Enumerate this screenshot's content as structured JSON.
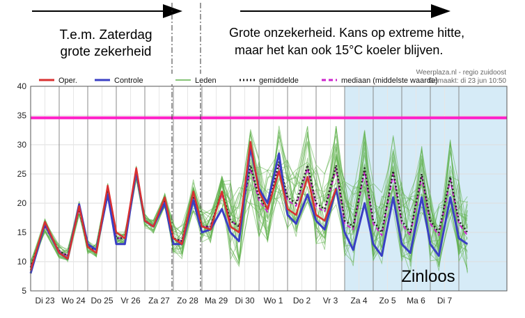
{
  "annotations": {
    "left_text_line1": "T.e.m. Zaterdag",
    "left_text_line2": "grote zekerheid",
    "right_text_line1": "Grote onzekerheid. Kans op extreme hitte,",
    "right_text_line2": "maar het kan ook 15°C koeler blijven.",
    "zinloos": "Zinloos"
  },
  "credit": {
    "line1": "Weerplaza.nl - regio zuidoost",
    "line2": "Gemaakt: di 23 jun 10:50"
  },
  "colors": {
    "oper": "#d93030",
    "controle": "#3a3fc4",
    "leden": "#5fb04a",
    "gemiddelde": "#222222",
    "mediaan": "#cc22cc",
    "threshold": "#ff1fc8",
    "zinloos_bg": "#d6ebf7"
  },
  "chart_data": {
    "type": "line",
    "ylim": [
      5,
      40
    ],
    "yticks": [
      5,
      10,
      15,
      20,
      25,
      30,
      35,
      40
    ],
    "xlim": [
      0,
      15.6
    ],
    "day_labels": [
      "Di 23",
      "Wo 24",
      "Do 25",
      "Vr 26",
      "Za 27",
      "Zo 28",
      "Ma 29",
      "Di 30",
      "Wo 1",
      "Do 2",
      "Vr 3",
      "Za 4",
      "Zo 5",
      "Ma 6",
      "Di 7"
    ],
    "threshold_line": 34.6,
    "zinloos_from_day": 11,
    "dashdot_lines_at_day": [
      5,
      6
    ],
    "legend": [
      {
        "key": "oper",
        "label": "Oper."
      },
      {
        "key": "controle",
        "label": "Controle"
      },
      {
        "key": "leden",
        "label": "Leden"
      },
      {
        "key": "gemiddelde",
        "label": "gemiddelde"
      },
      {
        "key": "mediaan",
        "label": "mediaan (middelste waarde)"
      }
    ],
    "series": [
      {
        "key": "oper",
        "name": "Oper.",
        "x": [
          0,
          0.5,
          1,
          1.3,
          1.7,
          2,
          2.3,
          2.7,
          3,
          3.3,
          3.7,
          4,
          4.3,
          4.7,
          5,
          5.3,
          5.7,
          6,
          6.3,
          6.7,
          7,
          7.3,
          7.7,
          8,
          8.3,
          8.7,
          9,
          9.3,
          9.7,
          10,
          10.3,
          10.7
        ],
        "y": [
          8.5,
          16.8,
          11.5,
          10.5,
          19.5,
          12.5,
          11.5,
          23,
          15,
          14,
          26,
          17,
          16,
          21,
          14,
          13,
          22,
          16,
          15.5,
          22,
          16,
          15,
          30.5,
          22,
          19,
          25.5,
          19,
          18,
          24.5,
          18,
          17,
          22.5
        ]
      },
      {
        "key": "controle",
        "name": "Controle",
        "x": [
          0,
          0.5,
          1,
          1.3,
          1.7,
          2,
          2.3,
          2.7,
          3,
          3.3,
          3.7,
          4,
          4.3,
          4.7,
          5,
          5.3,
          5.7,
          6,
          6.3,
          6.7,
          7,
          7.3,
          7.7,
          8,
          8.3,
          8.7,
          9,
          9.3,
          9.7,
          10,
          10.3,
          10.7,
          11,
          11.3,
          11.7,
          12,
          12.3,
          12.7,
          13,
          13.3,
          13.7,
          14,
          14.3,
          14.7,
          15,
          15.3
        ],
        "y": [
          8,
          16.5,
          11.5,
          10.5,
          19.8,
          13,
          12,
          21.5,
          13,
          13,
          25.5,
          17,
          16,
          20,
          13,
          13,
          20.5,
          15,
          15.5,
          19,
          15,
          13.5,
          29.5,
          22.5,
          20,
          28.5,
          18,
          16.5,
          21.5,
          17,
          15.5,
          22.5,
          15,
          12,
          20,
          13,
          11,
          21,
          13,
          11.5,
          21,
          13,
          11,
          21,
          14,
          13
        ]
      },
      {
        "key": "gemiddelde",
        "name": "gemiddelde",
        "x": [
          0,
          0.5,
          1,
          1.3,
          1.7,
          2,
          2.3,
          2.7,
          3,
          3.3,
          3.7,
          4,
          4.3,
          4.7,
          5,
          5.3,
          5.7,
          6,
          6.3,
          6.7,
          7,
          7.3,
          7.7,
          8,
          8.3,
          8.7,
          9,
          9.3,
          9.7,
          10,
          10.3,
          10.7,
          11,
          11.3,
          11.7,
          12,
          12.3,
          12.7,
          13,
          13.3,
          13.7,
          14,
          14.3,
          14.7,
          15,
          15.3
        ],
        "y": [
          9,
          16.2,
          11.8,
          11,
          19.2,
          12.5,
          12,
          22.5,
          14,
          14,
          25.2,
          17,
          16,
          20.5,
          14,
          13.5,
          21.5,
          16,
          16,
          22,
          17,
          16,
          26.5,
          21,
          19,
          27,
          21,
          20,
          26.5,
          20,
          19,
          26.5,
          17,
          16,
          26,
          17,
          15,
          25.5,
          17,
          15,
          25,
          17,
          15,
          24.5,
          17,
          15
        ]
      },
      {
        "key": "mediaan",
        "name": "mediaan (middelste waarde)",
        "x": [
          0,
          0.5,
          1,
          1.3,
          1.7,
          2,
          2.3,
          2.7,
          3,
          3.3,
          3.7,
          4,
          4.3,
          4.7,
          5,
          5.3,
          5.7,
          6,
          6.3,
          6.7,
          7,
          7.3,
          7.7,
          8,
          8.3,
          8.7,
          9,
          9.3,
          9.7,
          10,
          10.3,
          10.7,
          11,
          11.3,
          11.7,
          12,
          12.3,
          12.7,
          13,
          13.3,
          13.7,
          14,
          14.3,
          14.7,
          15,
          15.3
        ],
        "y": [
          9,
          16,
          11.8,
          11,
          19,
          12.5,
          12,
          22.5,
          14,
          14,
          25,
          17,
          16,
          20.5,
          14,
          13.5,
          21,
          16,
          16,
          21.5,
          17,
          16,
          26,
          20.5,
          18.5,
          26.5,
          20.5,
          19.5,
          26,
          19.5,
          18.5,
          26,
          16.5,
          15.5,
          25.5,
          16.5,
          14.5,
          25,
          16.5,
          14.5,
          24.5,
          16.5,
          14.5,
          24,
          16.5,
          14.5
        ]
      }
    ]
  }
}
